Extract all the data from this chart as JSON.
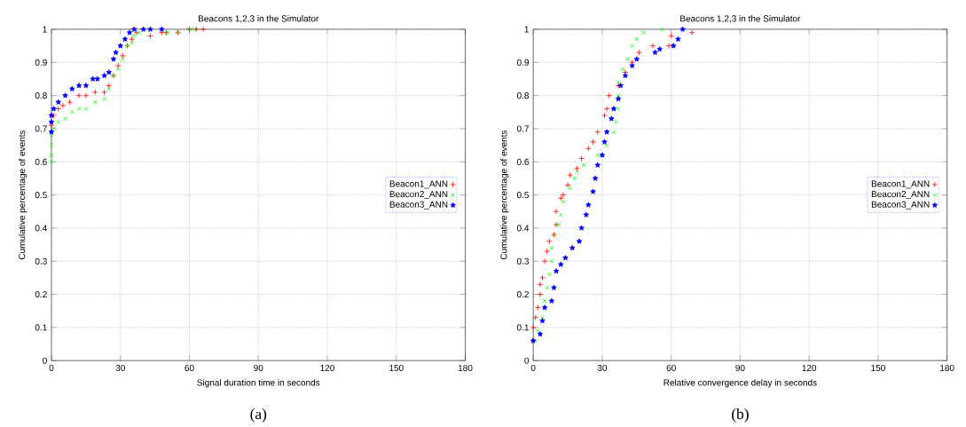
{
  "chart_data": [
    {
      "type": "scatter",
      "title": "Beacons 1,2,3 in the Simulator",
      "xlabel": "Signal duration time in seconds",
      "ylabel": "Cumulative percentage of events",
      "xlim": [
        0,
        180
      ],
      "ylim": [
        0,
        1
      ],
      "xticks": [
        0,
        30,
        60,
        90,
        120,
        150,
        180
      ],
      "yticks": [
        0,
        0.1,
        0.2,
        0.3,
        0.4,
        0.5,
        0.6,
        0.7,
        0.8,
        0.9,
        1
      ],
      "grid": true,
      "legend": "right",
      "annotations": [
        "(a)"
      ],
      "series": [
        {
          "name": "Beacon1_ANN",
          "color": "#ff0000",
          "marker": "plus",
          "x": [
            0,
            1,
            3,
            5,
            8,
            12,
            15,
            19,
            23,
            25,
            27,
            29,
            31,
            33,
            35,
            37,
            43,
            48,
            50,
            55,
            60,
            63,
            66
          ],
          "values": [
            0.71,
            0.74,
            0.76,
            0.77,
            0.78,
            0.8,
            0.8,
            0.81,
            0.81,
            0.83,
            0.86,
            0.89,
            0.92,
            0.95,
            0.97,
            0.99,
            0.98,
            0.99,
            0.99,
            0.99,
            1,
            1,
            1
          ]
        },
        {
          "name": "Beacon2_ANN",
          "color": "#00ff00",
          "marker": "cross",
          "x": [
            0,
            0,
            0,
            0,
            1,
            3,
            6,
            9,
            12,
            15,
            19,
            23,
            25,
            27,
            29,
            31,
            33,
            35,
            36,
            38,
            43,
            50,
            55,
            60,
            62
          ],
          "values": [
            0.6,
            0.62,
            0.65,
            0.68,
            0.7,
            0.72,
            0.73,
            0.75,
            0.76,
            0.76,
            0.78,
            0.79,
            0.82,
            0.86,
            0.88,
            0.91,
            0.95,
            0.96,
            0.98,
            0.99,
            null,
            0.99,
            0.99,
            1,
            1
          ]
        },
        {
          "name": "Beacon3_ANN",
          "color": "#0000ff",
          "marker": "star",
          "x": [
            0,
            0,
            0,
            1,
            3,
            6,
            9,
            12,
            15,
            18,
            20,
            23,
            25,
            27,
            28,
            30,
            32,
            34,
            36,
            40,
            43,
            48
          ],
          "values": [
            0.69,
            0.72,
            0.74,
            0.76,
            0.78,
            0.8,
            0.82,
            0.83,
            0.83,
            0.85,
            0.85,
            0.86,
            0.87,
            0.91,
            0.93,
            0.95,
            0.97,
            0.99,
            1,
            1,
            1,
            1
          ]
        }
      ]
    },
    {
      "type": "scatter",
      "title": "Beacons 1,2,3 in the Simulator",
      "xlabel": "Relative convergence delay in seconds",
      "ylabel": "Cumulative percentage of events",
      "xlim": [
        0,
        180
      ],
      "ylim": [
        0,
        1
      ],
      "xticks": [
        0,
        30,
        60,
        90,
        120,
        150,
        180
      ],
      "yticks": [
        0,
        0.1,
        0.2,
        0.3,
        0.4,
        0.5,
        0.6,
        0.7,
        0.8,
        0.9,
        1
      ],
      "grid": true,
      "legend": "right",
      "annotations": [
        "(b)"
      ],
      "series": [
        {
          "name": "Beacon1_ANN",
          "color": "#ff0000",
          "marker": "plus",
          "x": [
            0,
            0,
            1,
            2,
            3,
            3,
            4,
            5,
            6,
            7,
            9,
            10,
            10,
            12,
            13,
            15,
            16,
            19,
            21,
            24,
            26,
            28,
            31,
            32,
            33,
            37,
            40,
            43,
            46,
            52,
            59,
            60,
            69
          ],
          "values": [
            0.06,
            0.1,
            0.13,
            0.16,
            0.2,
            0.23,
            0.25,
            0.3,
            0.33,
            0.36,
            0.38,
            0.41,
            0.45,
            0.49,
            0.5,
            0.53,
            0.56,
            0.58,
            0.61,
            0.64,
            0.66,
            0.69,
            0.74,
            0.76,
            0.8,
            0.83,
            0.87,
            0.9,
            0.93,
            0.95,
            0.95,
            0.98,
            0.99
          ]
        },
        {
          "name": "Beacon2_ANN",
          "color": "#00ff00",
          "marker": "cross",
          "x": [
            1,
            2,
            4,
            5,
            6,
            7,
            8,
            8,
            9,
            11,
            12,
            13,
            16,
            18,
            19,
            22,
            28,
            32,
            35,
            36,
            37,
            37,
            37,
            39,
            41,
            43,
            45,
            48,
            56
          ],
          "values": [
            0.06,
            0.09,
            0.13,
            0.18,
            0.22,
            0.26,
            0.3,
            0.34,
            0.38,
            0.41,
            0.44,
            0.48,
            0.52,
            0.55,
            0.57,
            0.59,
            0.62,
            0.65,
            0.69,
            0.72,
            0.76,
            0.8,
            0.84,
            0.88,
            0.91,
            0.95,
            0.97,
            0.99,
            1
          ]
        },
        {
          "name": "Beacon3_ANN",
          "color": "#0000ff",
          "marker": "star",
          "x": [
            0,
            3,
            4,
            5,
            8,
            9,
            10,
            12,
            14,
            17,
            20,
            21,
            23,
            24,
            26,
            27,
            28,
            30,
            31,
            32,
            34,
            35,
            37,
            38,
            40,
            43,
            45,
            53,
            55,
            61,
            63,
            65
          ],
          "values": [
            0.06,
            0.08,
            0.12,
            0.16,
            0.18,
            0.22,
            0.27,
            0.29,
            0.31,
            0.34,
            0.36,
            0.4,
            0.44,
            0.47,
            0.51,
            0.55,
            0.59,
            0.62,
            0.66,
            0.69,
            0.73,
            0.76,
            0.79,
            0.83,
            0.86,
            0.89,
            0.91,
            0.93,
            0.94,
            0.95,
            0.97,
            1
          ]
        }
      ]
    }
  ]
}
